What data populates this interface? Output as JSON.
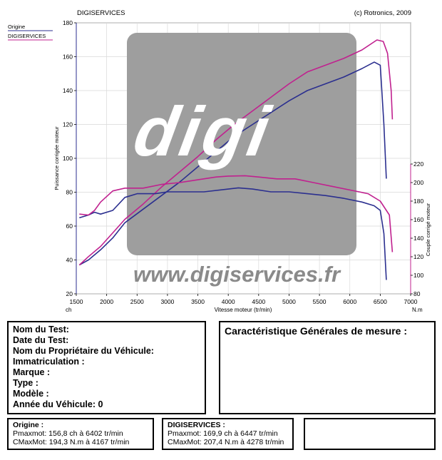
{
  "header": {
    "left": "DIGISERVICES",
    "right": "(c) Rotronics, 2009"
  },
  "legend": [
    {
      "label": "Origine",
      "color": "#2b2f8f"
    },
    {
      "label": "DIGISERVICES",
      "color": "#c0218f"
    }
  ],
  "chart_data": {
    "type": "line",
    "xlabel": "Vitesse moteur (tr/min)",
    "xlim": [
      1500,
      7000
    ],
    "xticks": [
      1500,
      2000,
      2500,
      3000,
      3500,
      4000,
      4500,
      5000,
      5500,
      6000,
      6500,
      7000
    ],
    "left_axis": {
      "label": "Puissance corrigée moteur",
      "unit": "ch",
      "ylim": [
        20,
        180
      ],
      "ticks": [
        20,
        40,
        60,
        80,
        100,
        120,
        140,
        160,
        180
      ]
    },
    "right_axis": {
      "label": "Couple corrigé moteur",
      "unit": "N.m",
      "ylim": [
        80,
        220
      ],
      "ticks": [
        80,
        100,
        120,
        140,
        160,
        180,
        200,
        220
      ]
    },
    "grid": true,
    "series": [
      {
        "name": "Origine",
        "quantity": "power",
        "axis": "left",
        "color": "#2b2f8f",
        "points": [
          [
            1550,
            37
          ],
          [
            1700,
            40
          ],
          [
            1900,
            46
          ],
          [
            2100,
            53
          ],
          [
            2300,
            62
          ],
          [
            2600,
            70
          ],
          [
            2900,
            78
          ],
          [
            3200,
            86
          ],
          [
            3500,
            95
          ],
          [
            3800,
            104
          ],
          [
            4100,
            113
          ],
          [
            4400,
            120
          ],
          [
            4700,
            127
          ],
          [
            5000,
            134
          ],
          [
            5300,
            140
          ],
          [
            5600,
            144
          ],
          [
            5900,
            148
          ],
          [
            6200,
            153
          ],
          [
            6402,
            156.8
          ],
          [
            6500,
            155
          ],
          [
            6560,
            120
          ],
          [
            6600,
            88
          ]
        ]
      },
      {
        "name": "DIGISERVICES",
        "quantity": "power",
        "axis": "left",
        "color": "#c0218f",
        "points": [
          [
            1550,
            37
          ],
          [
            1700,
            42
          ],
          [
            1900,
            48
          ],
          [
            2100,
            56
          ],
          [
            2300,
            64
          ],
          [
            2600,
            73
          ],
          [
            2900,
            83
          ],
          [
            3200,
            92
          ],
          [
            3500,
            101
          ],
          [
            3800,
            111
          ],
          [
            4100,
            120
          ],
          [
            4400,
            128
          ],
          [
            4700,
            136
          ],
          [
            5000,
            144
          ],
          [
            5300,
            151
          ],
          [
            5600,
            155
          ],
          [
            5900,
            159
          ],
          [
            6200,
            164
          ],
          [
            6447,
            169.9
          ],
          [
            6550,
            169
          ],
          [
            6620,
            162
          ],
          [
            6680,
            140
          ],
          [
            6700,
            123
          ]
        ]
      },
      {
        "name": "Origine",
        "quantity": "torque",
        "axis": "right",
        "color": "#2b2f8f",
        "points": [
          [
            1550,
            162
          ],
          [
            1700,
            165
          ],
          [
            1800,
            168
          ],
          [
            1900,
            166
          ],
          [
            2100,
            170
          ],
          [
            2300,
            184
          ],
          [
            2500,
            188
          ],
          [
            2800,
            188
          ],
          [
            3000,
            190
          ],
          [
            3300,
            190
          ],
          [
            3600,
            190
          ],
          [
            4000,
            193
          ],
          [
            4167,
            194.3
          ],
          [
            4400,
            193
          ],
          [
            4700,
            190
          ],
          [
            5000,
            190
          ],
          [
            5300,
            188
          ],
          [
            5600,
            186
          ],
          [
            5900,
            183
          ],
          [
            6200,
            179
          ],
          [
            6400,
            175
          ],
          [
            6500,
            170
          ],
          [
            6560,
            145
          ],
          [
            6600,
            95
          ]
        ]
      },
      {
        "name": "DIGISERVICES",
        "quantity": "torque",
        "axis": "right",
        "color": "#c0218f",
        "points": [
          [
            1550,
            166
          ],
          [
            1700,
            165
          ],
          [
            1800,
            170
          ],
          [
            1900,
            179
          ],
          [
            2100,
            191
          ],
          [
            2300,
            194
          ],
          [
            2600,
            194
          ],
          [
            2900,
            198
          ],
          [
            3200,
            200
          ],
          [
            3500,
            203
          ],
          [
            3800,
            206
          ],
          [
            4000,
            207
          ],
          [
            4278,
            207.4
          ],
          [
            4500,
            206
          ],
          [
            4800,
            204
          ],
          [
            5100,
            204
          ],
          [
            5400,
            200
          ],
          [
            5700,
            196
          ],
          [
            6000,
            192
          ],
          [
            6300,
            188
          ],
          [
            6500,
            180
          ],
          [
            6650,
            165
          ],
          [
            6700,
            125
          ]
        ]
      }
    ]
  },
  "watermark": {
    "logo": "digi",
    "url": "www.digiservices.fr"
  },
  "info": {
    "lines": [
      "Nom du Test:",
      "Date du Test:",
      "Nom du Propriétaire du Véhicule:",
      "Immatriculation  :",
      "Marque  :",
      "Type  :",
      "Modèle  :",
      "Année du Véhicule: 0"
    ],
    "characteristics_title": "Caractéristique Générales de mesure :"
  },
  "summary": {
    "origine": {
      "title": "Origine :",
      "pmax": "Pmaxmot: 156,8 ch à 6402 tr/min",
      "cmax": "CMaxMot: 194,3 N.m à 4167 tr/min"
    },
    "digiservices": {
      "title": "DIGISERVICES :",
      "pmax": "Pmaxmot: 169,9 ch à 6447 tr/min",
      "cmax": "CMaxMot: 207,4 N.m à 4278 tr/min"
    }
  }
}
